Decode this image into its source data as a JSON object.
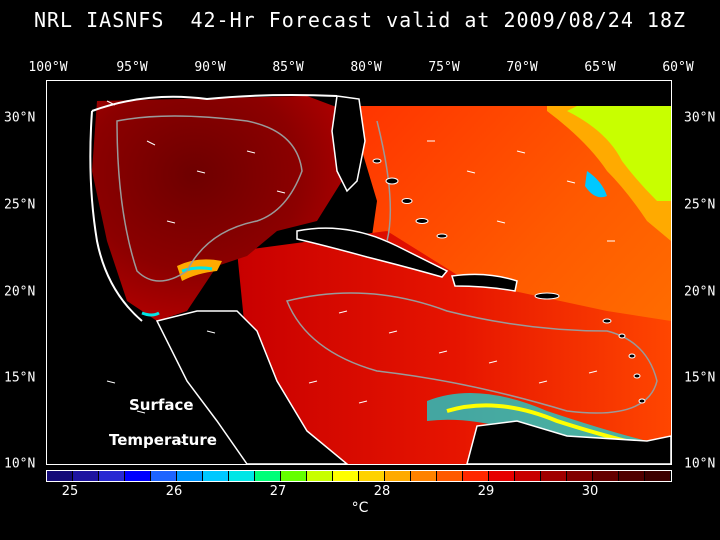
{
  "title": "NRL IASNFS  42-Hr Forecast valid at 2009/08/24 18Z",
  "lon_ticks": [
    "100°W",
    "95°W",
    "90°W",
    "85°W",
    "80°W",
    "75°W",
    "70°W",
    "65°W",
    "60°W"
  ],
  "lat_ticks": [
    "30°N",
    "25°N",
    "20°N",
    "15°N",
    "10°N"
  ],
  "overlay": {
    "line1": "Surface",
    "line2": "Temperature"
  },
  "colorbar": {
    "labels": [
      "25",
      "26",
      "27",
      "28",
      "29",
      "30"
    ],
    "unit": "°C",
    "colors": [
      "#140a78",
      "#1e14a0",
      "#2828d2",
      "#0000ff",
      "#1e64ff",
      "#0096ff",
      "#00c8ff",
      "#00e6e6",
      "#00ff78",
      "#64ff00",
      "#c8ff00",
      "#ffff00",
      "#ffd200",
      "#ffaa00",
      "#ff8200",
      "#ff5a00",
      "#ff2800",
      "#e60000",
      "#c80000",
      "#a00000",
      "#820000",
      "#640000",
      "#500000",
      "#3c0000"
    ]
  },
  "palette": {
    "land": "#ffffff",
    "ocean_hot": "#8c0000",
    "ocean_mid": "#ff3c00",
    "ocean_cool": "#ff8c00",
    "coast": "#ffffff",
    "contour": "#9a9a9a"
  }
}
